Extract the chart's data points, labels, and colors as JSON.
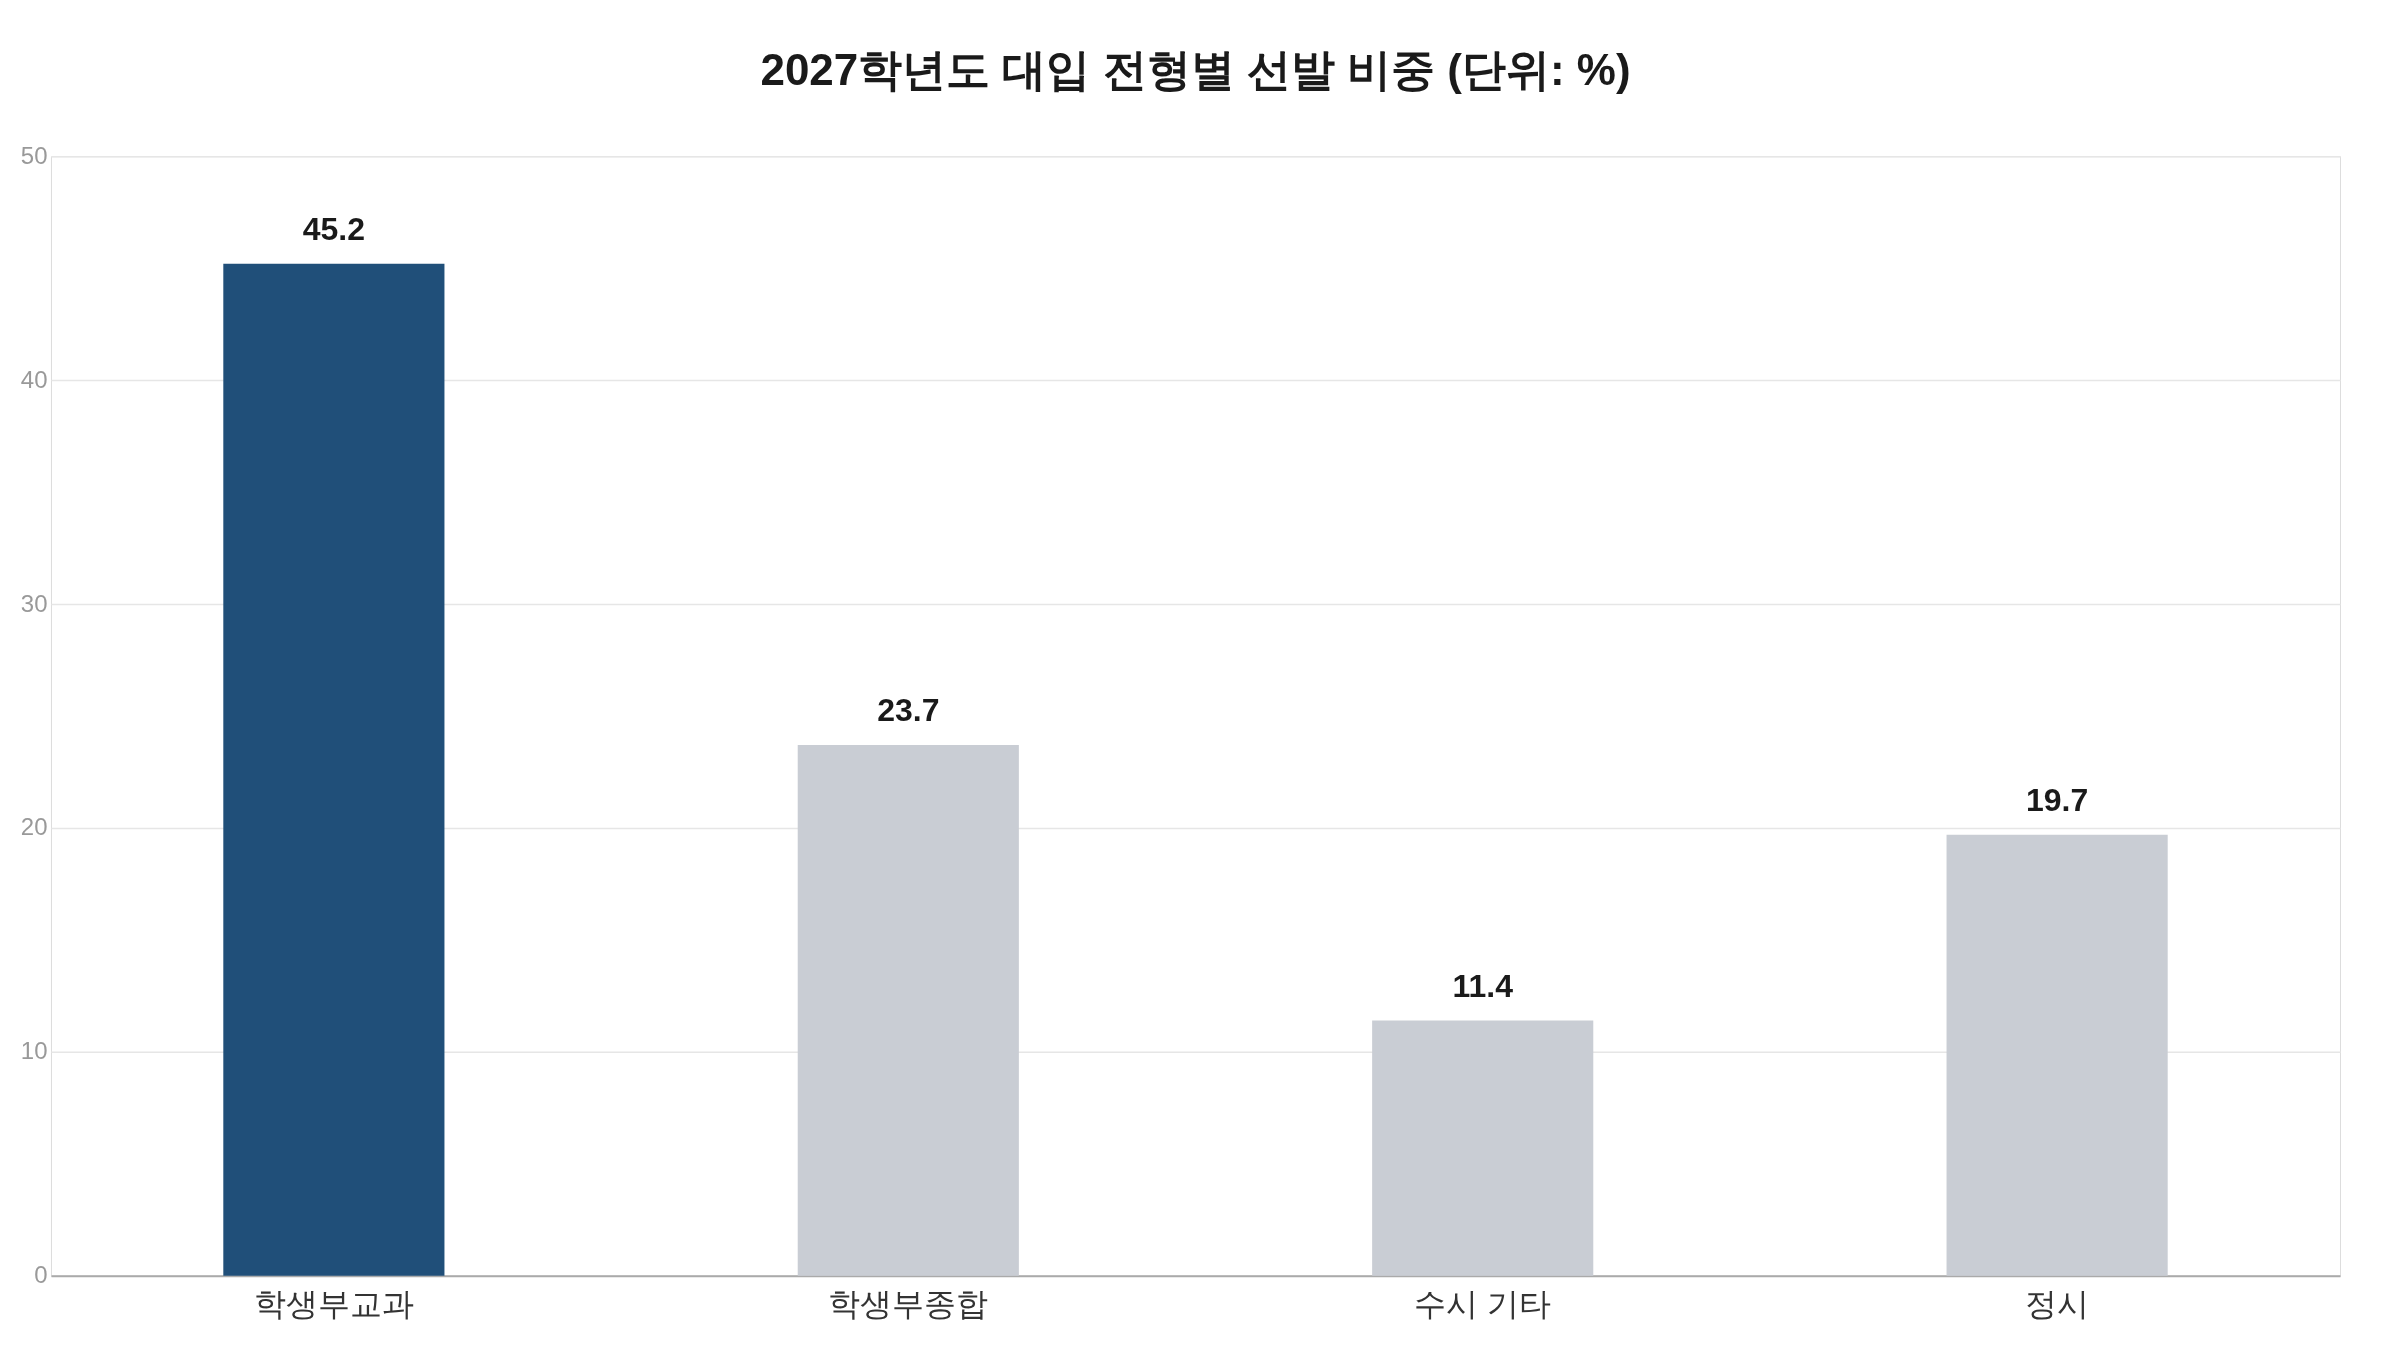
{
  "chart_data": {
    "type": "bar",
    "title": "2027학년도 대입 전형별 선발 비중 (단위: %)",
    "categories": [
      "학생부교과",
      "학생부종합",
      "수시 기타",
      "정시"
    ],
    "values": [
      45.2,
      23.7,
      11.4,
      19.7
    ],
    "colors": [
      "#204f79",
      "#c9cdd4",
      "#c9cdd4",
      "#c9cdd4"
    ],
    "ylim": [
      0,
      50
    ],
    "yticks": [
      0,
      10,
      20,
      30,
      40,
      50
    ],
    "grid": "y",
    "data_labels": true
  }
}
